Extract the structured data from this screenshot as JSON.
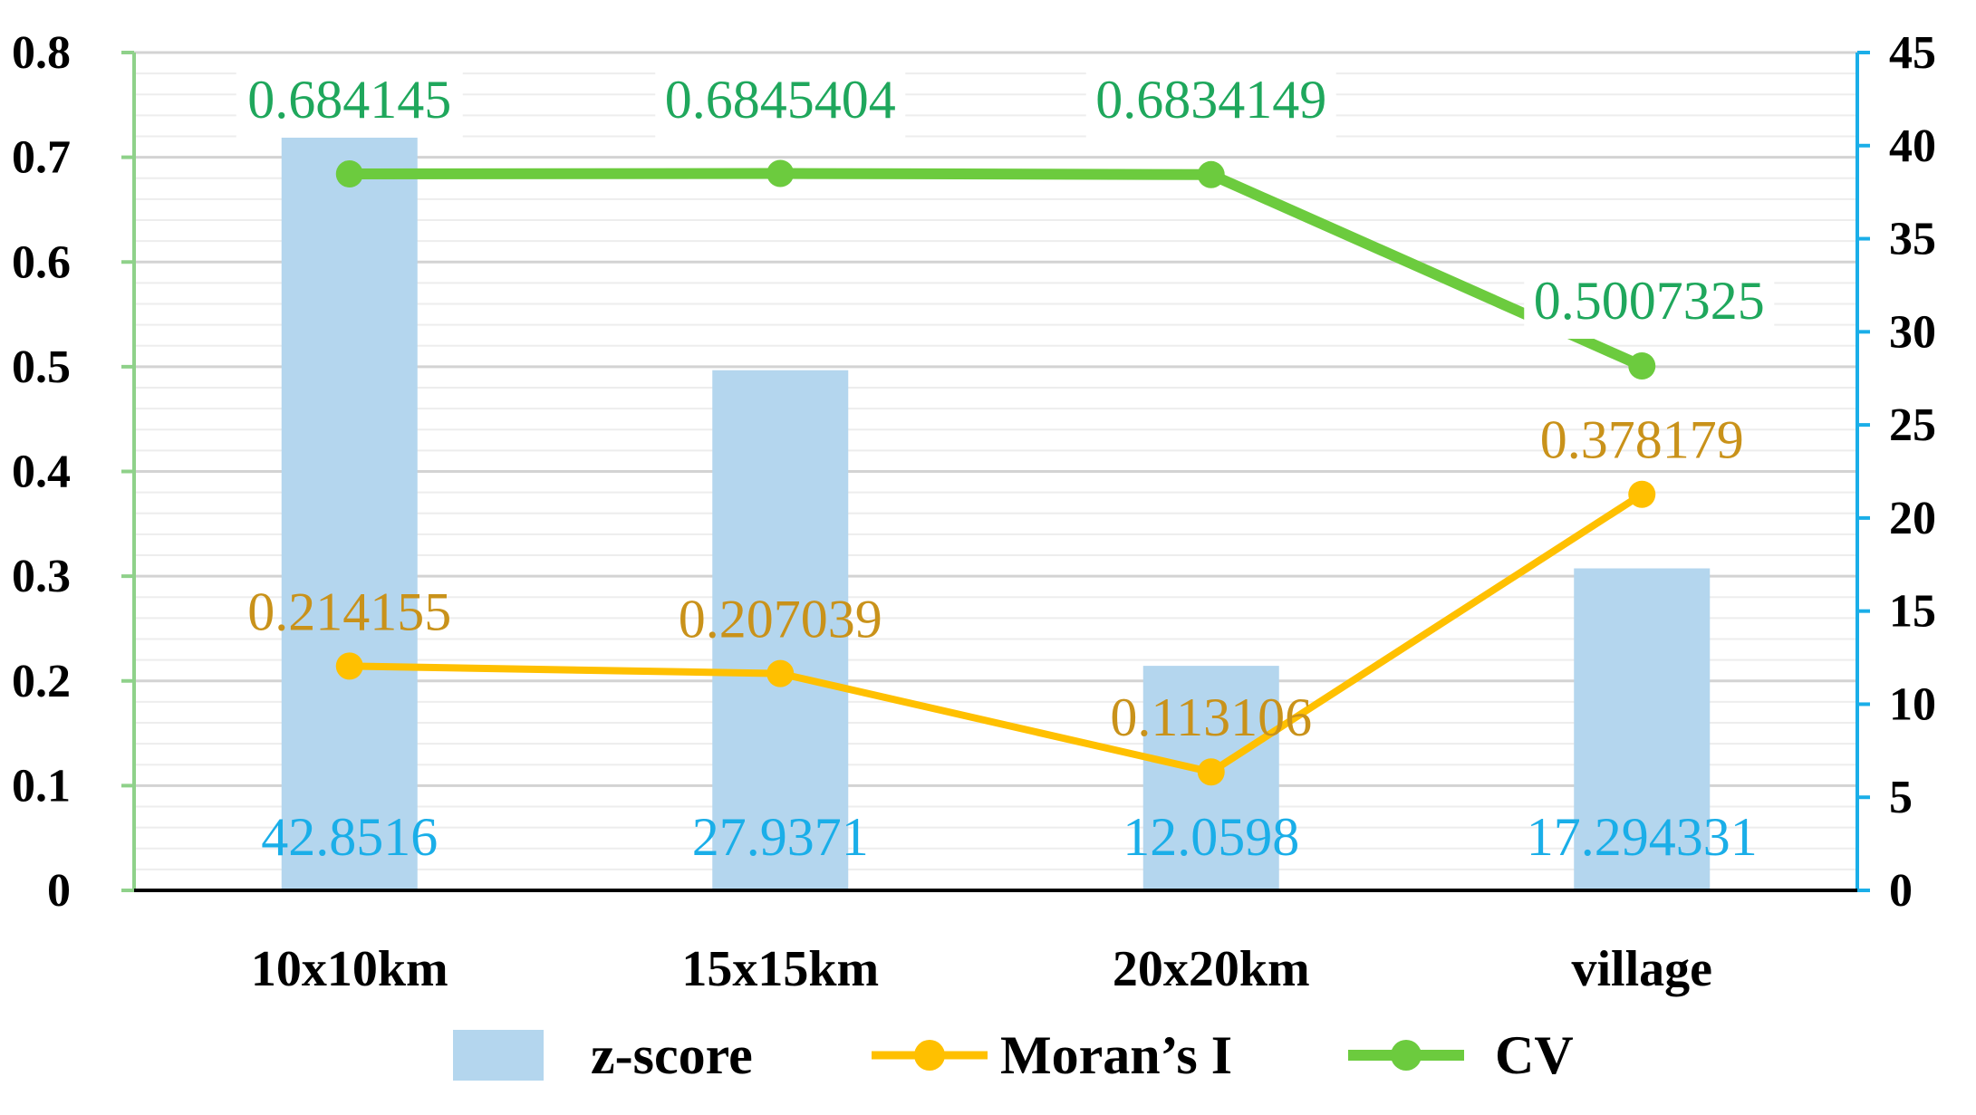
{
  "chart_data": {
    "type": "bar",
    "categories": [
      "10x10km",
      "15x15km",
      "20x20km",
      "village"
    ],
    "series": [
      {
        "name": "z-score",
        "kind": "bar",
        "axis": "right",
        "values": [
          42.8516,
          27.9371,
          12.0598,
          17.294331
        ],
        "labels": [
          "42.8516",
          "27.9371",
          "12.0598",
          "17.294331"
        ],
        "color": "#B4D6EE",
        "label_color": "#1AAEE8"
      },
      {
        "name": "Moran’s I",
        "kind": "line",
        "axis": "left",
        "values": [
          0.214155,
          0.207039,
          0.113106,
          0.378179
        ],
        "labels": [
          "0.214155",
          "0.207039",
          "0.113106",
          "0.378179"
        ],
        "color": "#FFC000",
        "label_color": "#C9921A"
      },
      {
        "name": "CV",
        "kind": "line",
        "axis": "left",
        "values": [
          0.684145,
          0.6845404,
          0.6834149,
          0.5007325
        ],
        "labels": [
          "0.684145",
          "0.6845404",
          "0.6834149",
          "0.5007325"
        ],
        "color": "#6CCB3E",
        "label_color": "#1FA75C"
      }
    ],
    "y_left": {
      "min": 0,
      "max": 0.8,
      "ticks": [
        "0",
        "0.1",
        "0.2",
        "0.3",
        "0.4",
        "0.5",
        "0.6",
        "0.7",
        "0.8"
      ],
      "axis_color": "#8FD18A"
    },
    "y_right": {
      "min": 0,
      "max": 45,
      "ticks": [
        "0",
        "5",
        "10",
        "15",
        "20",
        "25",
        "30",
        "35",
        "40",
        "45"
      ],
      "axis_color": "#1AAEE8"
    },
    "grid": true,
    "legend_position": "bottom"
  }
}
